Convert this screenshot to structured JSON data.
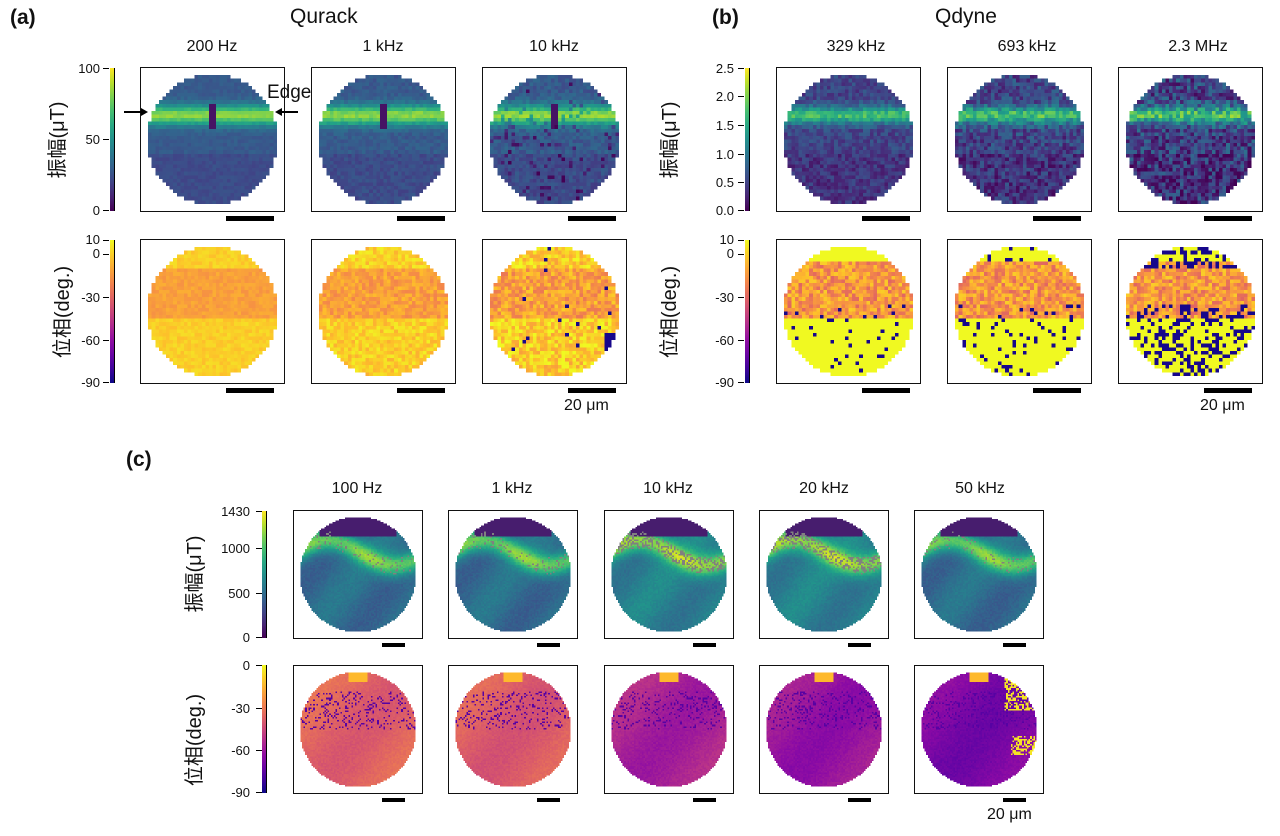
{
  "chart_data": [
    {
      "type": "heatmap",
      "panel": "(a)",
      "title": "Qurack",
      "columns": [
        "200 Hz",
        "1 kHz",
        "10 kHz"
      ],
      "rows": [
        {
          "ylabel": "振幅(μT)",
          "colormap": "viridis",
          "range": [
            0,
            100
          ],
          "ticks": [
            0,
            50,
            100
          ],
          "tick_labels": [
            "0",
            "50",
            "100"
          ]
        },
        {
          "ylabel": "位相(deg.)",
          "colormap": "plasma",
          "range": [
            -90,
            10
          ],
          "ticks": [
            -90,
            -60,
            -30,
            0,
            10
          ],
          "tick_labels": [
            "-90",
            "-60",
            "-30",
            "0",
            "10"
          ]
        }
      ],
      "annotation": "Edge",
      "scalebar": "20 μm"
    },
    {
      "type": "heatmap",
      "panel": "(b)",
      "title": "Qdyne",
      "columns": [
        "329 kHz",
        "693 kHz",
        "2.3 MHz"
      ],
      "rows": [
        {
          "ylabel": "振幅(μT)",
          "colormap": "viridis",
          "range": [
            0.0,
            2.5
          ],
          "ticks": [
            0.0,
            0.5,
            1.0,
            1.5,
            2.0,
            2.5
          ],
          "tick_labels": [
            "0.0",
            "0.5",
            "1.0",
            "1.5",
            "2.0",
            "2.5"
          ]
        },
        {
          "ylabel": "位相(deg.)",
          "colormap": "plasma",
          "range": [
            -90,
            10
          ],
          "ticks": [
            -90,
            -60,
            -30,
            0,
            10
          ],
          "tick_labels": [
            "-90",
            "-60",
            "-30",
            "0",
            "10"
          ]
        }
      ],
      "scalebar": "20 μm"
    },
    {
      "type": "heatmap",
      "panel": "(c)",
      "title": "",
      "columns": [
        "100 Hz",
        "1 kHz",
        "10 kHz",
        "20 kHz",
        "50 kHz"
      ],
      "rows": [
        {
          "ylabel": "振幅(μT)",
          "colormap": "viridis",
          "range": [
            0,
            1430
          ],
          "ticks": [
            0,
            500,
            1000,
            1430
          ],
          "tick_labels": [
            "0",
            "500",
            "1000",
            "1430"
          ]
        },
        {
          "ylabel": "位相(deg.)",
          "colormap": "plasma",
          "range": [
            -90,
            0
          ],
          "ticks": [
            -90,
            -60,
            -30,
            0
          ],
          "tick_labels": [
            "-90",
            "-60",
            "-30",
            "0"
          ]
        }
      ],
      "scalebar": "20 μm"
    }
  ]
}
